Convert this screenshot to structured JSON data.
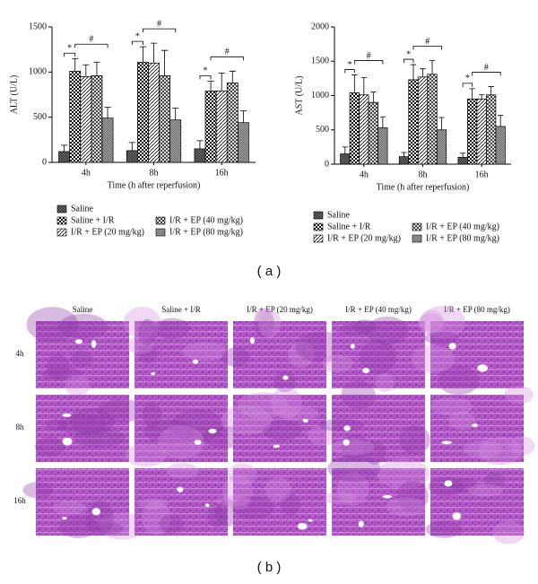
{
  "chart_data": [
    {
      "type": "bar",
      "y_label": "ALT (U/L)",
      "x_label": "Time (h after reperfusion)",
      "categories": [
        "4h",
        "8h",
        "16h"
      ],
      "ylim": [
        0,
        1500
      ],
      "yticks": [
        0,
        500,
        1000,
        1500
      ],
      "series": [
        {
          "name": "Saline",
          "pattern": "p-saline",
          "values": [
            120,
            130,
            150
          ],
          "errors": [
            70,
            90,
            90
          ]
        },
        {
          "name": "Saline + I/R",
          "pattern": "p-checker",
          "values": [
            1010,
            1110,
            790
          ],
          "errors": [
            140,
            170,
            110
          ]
        },
        {
          "name": "I/R + EP (20 mg/kg)",
          "pattern": "p-diag",
          "values": [
            950,
            1100,
            790
          ],
          "errors": [
            130,
            220,
            200
          ]
        },
        {
          "name": "I/R + EP (40 mg/kg)",
          "pattern": "p-cross",
          "values": [
            960,
            960,
            880
          ],
          "errors": [
            150,
            280,
            130
          ]
        },
        {
          "name": "I/R + EP (80 mg/kg)",
          "pattern": "p-dense",
          "values": [
            490,
            470,
            440
          ],
          "errors": [
            120,
            130,
            130
          ]
        }
      ],
      "annotations": [
        {
          "text": "*",
          "category": 0,
          "series": [
            0,
            1
          ]
        },
        {
          "text": "#",
          "category": 0,
          "series": [
            1,
            4
          ]
        },
        {
          "text": "*",
          "category": 1,
          "series": [
            0,
            1
          ]
        },
        {
          "text": "#",
          "category": 1,
          "series": [
            1,
            4
          ]
        },
        {
          "text": "*",
          "category": 2,
          "series": [
            0,
            1
          ]
        },
        {
          "text": "#",
          "category": 2,
          "series": [
            1,
            4
          ]
        }
      ]
    },
    {
      "type": "bar",
      "y_label": "AST (U/L)",
      "x_label": "Time (h after reperfusion)",
      "categories": [
        "4h",
        "8h",
        "16h"
      ],
      "ylim": [
        0,
        2000
      ],
      "yticks": [
        0,
        500,
        1000,
        1500,
        2000
      ],
      "series": [
        {
          "name": "Saline",
          "pattern": "p-saline",
          "values": [
            150,
            110,
            100
          ],
          "errors": [
            100,
            60,
            60
          ]
        },
        {
          "name": "Saline + I/R",
          "pattern": "p-checker",
          "values": [
            1040,
            1230,
            950
          ],
          "errors": [
            260,
            220,
            150
          ]
        },
        {
          "name": "I/R + EP (20 mg/kg)",
          "pattern": "p-diag",
          "values": [
            1010,
            1270,
            950
          ],
          "errors": [
            250,
            120,
            60
          ]
        },
        {
          "name": "I/R + EP (40 mg/kg)",
          "pattern": "p-cross",
          "values": [
            900,
            1310,
            1010
          ],
          "errors": [
            150,
            200,
            120
          ]
        },
        {
          "name": "I/R + EP (80 mg/kg)",
          "pattern": "p-dense",
          "values": [
            530,
            500,
            550
          ],
          "errors": [
            160,
            180,
            160
          ]
        }
      ],
      "annotations": [
        {
          "text": "*",
          "category": 0,
          "series": [
            0,
            1
          ]
        },
        {
          "text": "#",
          "category": 0,
          "series": [
            1,
            4
          ]
        },
        {
          "text": "*",
          "category": 1,
          "series": [
            0,
            1
          ]
        },
        {
          "text": "#",
          "category": 1,
          "series": [
            1,
            4
          ]
        },
        {
          "text": "*",
          "category": 2,
          "series": [
            0,
            1
          ]
        },
        {
          "text": "#",
          "category": 2,
          "series": [
            1,
            4
          ]
        }
      ]
    }
  ],
  "panel_labels": [
    "( a )",
    "( b )"
  ],
  "histology": {
    "columns": [
      "Saline",
      "Saline + I/R",
      "I/R + EP (20 mg/kg)",
      "I/R + EP (40 mg/kg)",
      "I/R + EP (80 mg/kg)"
    ],
    "rows": [
      "4h",
      "8h",
      "16h"
    ]
  }
}
